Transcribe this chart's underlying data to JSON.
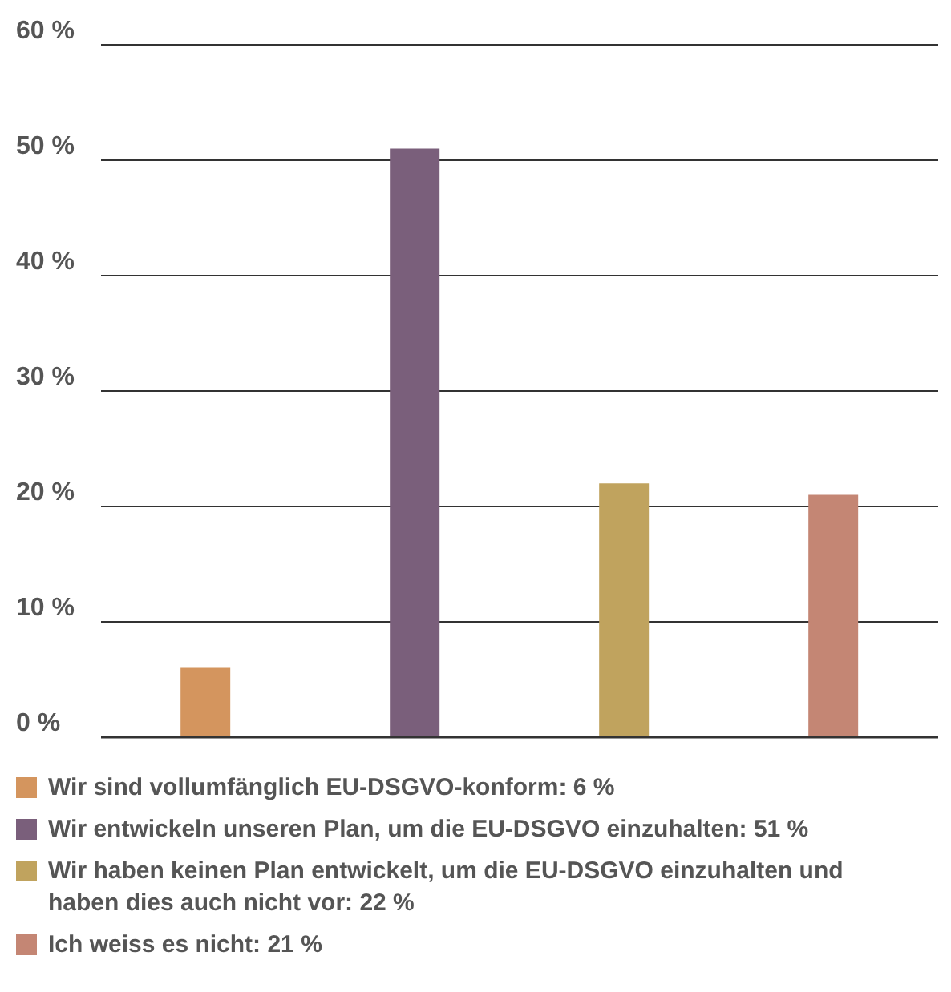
{
  "chart_data": {
    "type": "bar",
    "categories": [
      null,
      null,
      null,
      null
    ],
    "series": [
      {
        "name": "Wir sind vollumfänglich EU-DSGVO-konform: 6 %",
        "color": "#d4955e",
        "values": [
          6,
          null,
          null,
          null
        ]
      },
      {
        "name": "Wir entwickeln unseren Plan, um die EU-DSGVO einzuhalten: 51 %",
        "color": "#7a5f7b",
        "values": [
          null,
          51,
          null,
          null
        ]
      },
      {
        "name": "Wir haben keinen Plan entwickelt, um die EU-DSGVO einzuhalten und haben dies auch nicht vor: 22 %",
        "color": "#c0a35e",
        "values": [
          null,
          null,
          22,
          null
        ]
      },
      {
        "name": "Ich weiss es nicht: 21 %",
        "color": "#c48674",
        "values": [
          null,
          null,
          null,
          21
        ]
      }
    ],
    "ylim": [
      0,
      60
    ],
    "yticks": [
      {
        "value": 0,
        "label": "0 %"
      },
      {
        "value": 10,
        "label": "10 %"
      },
      {
        "value": 20,
        "label": "20 %"
      },
      {
        "value": 30,
        "label": "30 %"
      },
      {
        "value": 40,
        "label": "40 %"
      },
      {
        "value": 50,
        "label": "50 %"
      },
      {
        "value": 60,
        "label": "60 %"
      }
    ],
    "grid": "y",
    "legend": "bottom"
  }
}
